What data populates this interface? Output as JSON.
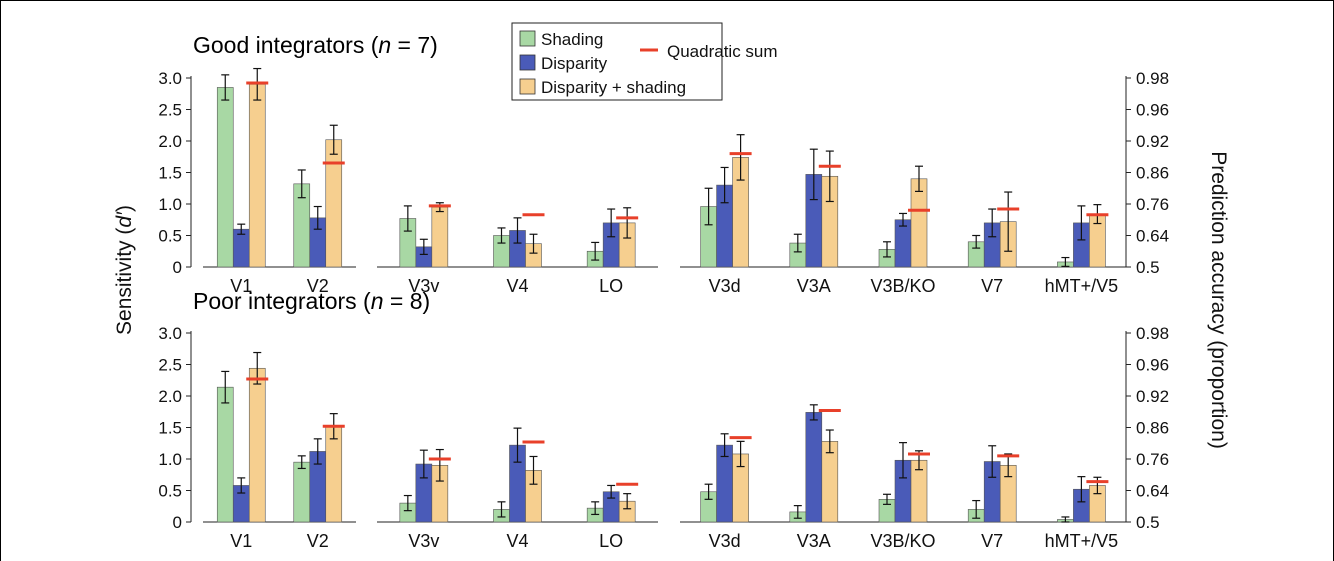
{
  "colors": {
    "shading": "#a8d8a4",
    "disparity": "#4a5bb8",
    "combined": "#f6cf8f",
    "quadratic": "#e8402a"
  },
  "legend": {
    "shading": "Shading",
    "disparity": "Disparity",
    "combined": "Disparity + shading",
    "quadratic": "Quadratic sum"
  },
  "axes": {
    "left_label_main": "Sensitivity (",
    "left_label_italic": "d′",
    "left_label_end": ")",
    "right_label": "Prediction accuracy (proportion)",
    "left_ticks": [
      "0",
      "0.5",
      "1.0",
      "1.5",
      "2.0",
      "2.5",
      "3.0"
    ],
    "right_ticks": [
      "0.5",
      "0.64",
      "0.76",
      "0.86",
      "0.92",
      "0.96",
      "0.98"
    ]
  },
  "chart_data": [
    {
      "type": "bar",
      "title_main": "Good integrators (",
      "title_italic": "n",
      "title_end": " = 7)",
      "ylabel": "Sensitivity (d′)",
      "ylim": [
        0,
        3.0
      ],
      "y2label": "Prediction accuracy (proportion)",
      "groups": [
        {
          "regions": [
            {
              "label": "V1",
              "values": [
                2.85,
                0.6,
                2.9
              ],
              "errors": [
                0.2,
                0.08,
                0.25
              ],
              "quadratic": 2.92
            },
            {
              "label": "V2",
              "values": [
                1.32,
                0.78,
                2.02
              ],
              "errors": [
                0.22,
                0.18,
                0.23
              ],
              "quadratic": 1.65
            }
          ]
        },
        {
          "regions": [
            {
              "label": "V3v",
              "values": [
                0.77,
                0.32,
                0.95
              ],
              "errors": [
                0.2,
                0.12,
                0.07
              ],
              "quadratic": 0.97
            },
            {
              "label": "V4",
              "values": [
                0.5,
                0.58,
                0.37
              ],
              "errors": [
                0.12,
                0.2,
                0.15
              ],
              "quadratic": 0.83
            },
            {
              "label": "LO",
              "values": [
                0.25,
                0.7,
                0.7
              ],
              "errors": [
                0.14,
                0.22,
                0.24
              ],
              "quadratic": 0.78
            }
          ]
        },
        {
          "regions": [
            {
              "label": "V3d",
              "values": [
                0.96,
                1.3,
                1.74
              ],
              "errors": [
                0.29,
                0.28,
                0.36
              ],
              "quadratic": 1.8
            },
            {
              "label": "V3A",
              "values": [
                0.38,
                1.47,
                1.44
              ],
              "errors": [
                0.14,
                0.4,
                0.4
              ],
              "quadratic": 1.6
            },
            {
              "label": "V3B/KO",
              "values": [
                0.28,
                0.75,
                1.4
              ],
              "errors": [
                0.12,
                0.1,
                0.2
              ],
              "quadratic": 0.9
            },
            {
              "label": "V7",
              "values": [
                0.4,
                0.7,
                0.72
              ],
              "errors": [
                0.1,
                0.22,
                0.47
              ],
              "quadratic": 0.92
            },
            {
              "label": "hMT+/V5",
              "values": [
                0.08,
                0.7,
                0.84
              ],
              "errors": [
                0.07,
                0.27,
                0.15
              ],
              "quadratic": 0.83
            }
          ]
        }
      ]
    },
    {
      "type": "bar",
      "title_main": "Poor integrators (",
      "title_italic": "n",
      "title_end": " = 8)",
      "ylabel": "Sensitivity (d′)",
      "ylim": [
        0,
        3.0
      ],
      "y2label": "Prediction accuracy (proportion)",
      "groups": [
        {
          "regions": [
            {
              "label": "V1",
              "values": [
                2.14,
                0.58,
                2.44
              ],
              "errors": [
                0.25,
                0.12,
                0.25
              ],
              "quadratic": 2.27
            },
            {
              "label": "V2",
              "values": [
                0.95,
                1.12,
                1.52
              ],
              "errors": [
                0.1,
                0.2,
                0.2
              ],
              "quadratic": 1.52
            }
          ]
        },
        {
          "regions": [
            {
              "label": "V3v",
              "values": [
                0.3,
                0.92,
                0.9
              ],
              "errors": [
                0.12,
                0.22,
                0.25
              ],
              "quadratic": 1.0
            },
            {
              "label": "V4",
              "values": [
                0.2,
                1.22,
                0.82
              ],
              "errors": [
                0.12,
                0.27,
                0.22
              ],
              "quadratic": 1.27
            },
            {
              "label": "LO",
              "values": [
                0.22,
                0.48,
                0.33
              ],
              "errors": [
                0.1,
                0.1,
                0.12
              ],
              "quadratic": 0.6
            }
          ]
        },
        {
          "regions": [
            {
              "label": "V3d",
              "values": [
                0.48,
                1.22,
                1.08
              ],
              "errors": [
                0.12,
                0.18,
                0.2
              ],
              "quadratic": 1.34
            },
            {
              "label": "V3A",
              "values": [
                0.16,
                1.74,
                1.28
              ],
              "errors": [
                0.1,
                0.12,
                0.18
              ],
              "quadratic": 1.77
            },
            {
              "label": "V3B/KO",
              "values": [
                0.36,
                0.98,
                0.98
              ],
              "errors": [
                0.08,
                0.28,
                0.15
              ],
              "quadratic": 1.08
            },
            {
              "label": "V7",
              "values": [
                0.2,
                0.96,
                0.9
              ],
              "errors": [
                0.14,
                0.25,
                0.18
              ],
              "quadratic": 1.05
            },
            {
              "label": "hMT+/V5",
              "values": [
                0.04,
                0.52,
                0.58
              ],
              "errors": [
                0.04,
                0.2,
                0.13
              ],
              "quadratic": 0.64
            }
          ]
        }
      ]
    }
  ]
}
